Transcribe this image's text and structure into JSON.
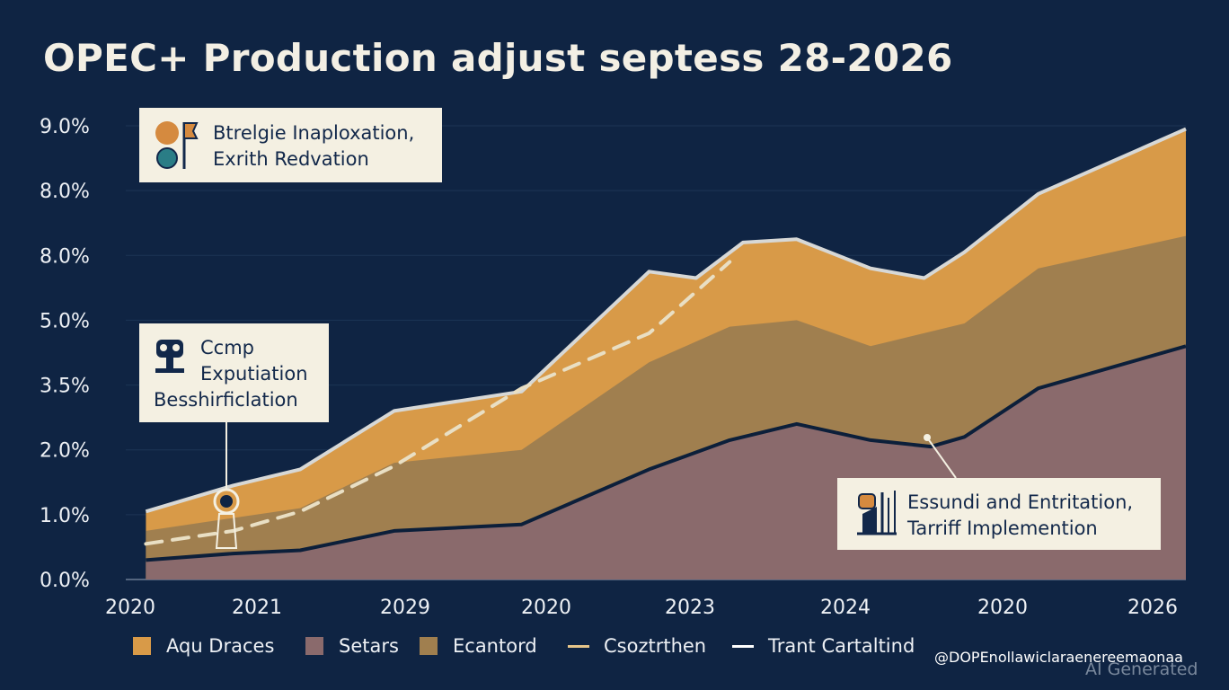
{
  "chart_data": {
    "type": "area",
    "title": "OPEC+ Production adjust septess 28-2026",
    "y_tick_labels": [
      "0.0%",
      "1.0%",
      "2.0%",
      "3.5%",
      "5.0%",
      "8.0%",
      "8.0%",
      "9.0%"
    ],
    "x_tick_labels": [
      "2020",
      "2021",
      "2029",
      "2020",
      "2023",
      "2024",
      "2020",
      "2026"
    ],
    "ylim": [
      0,
      7
    ],
    "xlim": [
      0,
      7.9
    ],
    "stack_top": {
      "x": [
        0.15,
        0.8,
        1.3,
        2.0,
        2.95,
        3.9,
        4.25,
        4.6,
        5.0,
        5.55,
        5.95,
        6.25,
        6.8,
        7.9
      ],
      "y": [
        1.05,
        1.45,
        1.7,
        2.6,
        2.9,
        4.75,
        4.65,
        5.2,
        5.25,
        4.8,
        4.65,
        5.05,
        5.95,
        6.95
      ]
    },
    "series": [
      {
        "name": "Aqu Draces",
        "color": "#d89a48",
        "y": [
          1.05,
          1.45,
          1.7,
          2.6,
          2.9,
          4.75,
          4.65,
          5.2,
          5.25,
          4.8,
          4.65,
          5.05,
          5.95,
          6.95
        ]
      },
      {
        "name": "Ecantord",
        "color": "#a07f4f",
        "x": [
          0.15,
          0.8,
          1.3,
          2.0,
          2.95,
          3.9,
          4.5,
          5.0,
          5.55,
          6.25,
          6.8,
          7.9
        ],
        "y": [
          0.75,
          0.95,
          1.1,
          1.8,
          2.0,
          3.35,
          3.9,
          4.0,
          3.6,
          3.95,
          4.8,
          5.3
        ]
      },
      {
        "name": "Setars",
        "color": "#8a6a6c",
        "x": [
          0.15,
          0.8,
          1.3,
          2.0,
          2.95,
          3.9,
          4.5,
          5.0,
          5.55,
          6.0,
          6.25,
          6.8,
          7.9
        ],
        "y": [
          0.3,
          0.4,
          0.45,
          0.75,
          0.85,
          1.7,
          2.15,
          2.4,
          2.15,
          2.05,
          2.2,
          2.95,
          3.6
        ]
      }
    ],
    "trend_line": {
      "name": "Csoztrthen",
      "style": "dashed",
      "color": "#e9dfc4",
      "x": [
        0.15,
        0.8,
        1.3,
        2.0,
        2.95,
        3.9,
        4.5
      ],
      "y": [
        0.55,
        0.75,
        1.05,
        1.75,
        2.95,
        3.8,
        4.9
      ]
    },
    "legend": [
      {
        "label": "Aqu Draces",
        "kind": "area",
        "color": "#d89a48"
      },
      {
        "label": "Setars",
        "kind": "area",
        "color": "#8a6a6c"
      },
      {
        "label": "Ecantord",
        "kind": "area",
        "color": "#a07f4f"
      },
      {
        "label": "Csoztrthen",
        "kind": "line",
        "color": "#e6c58a"
      },
      {
        "label": "Trant Cartaltind",
        "kind": "line",
        "color": "#ffffff"
      }
    ]
  },
  "annotations": [
    {
      "lines": [
        "Btrelgie Inaploxation,",
        "Exrith Redvation"
      ]
    },
    {
      "lines": [
        "Ccmp",
        "Exputiation",
        "Besshirficlation"
      ]
    },
    {
      "lines": [
        "Essundi and Entritation,",
        "Tarriff Implemention"
      ]
    }
  ],
  "credit": "@DOPEnollawiclaraenereemaonaa",
  "watermark": "AI Generated",
  "colors": {
    "background": "#0f2443",
    "outline_light": "#d7d8d6",
    "outline_dark": "#0c1f3a",
    "annotation_bg": "#f4f0e2"
  }
}
